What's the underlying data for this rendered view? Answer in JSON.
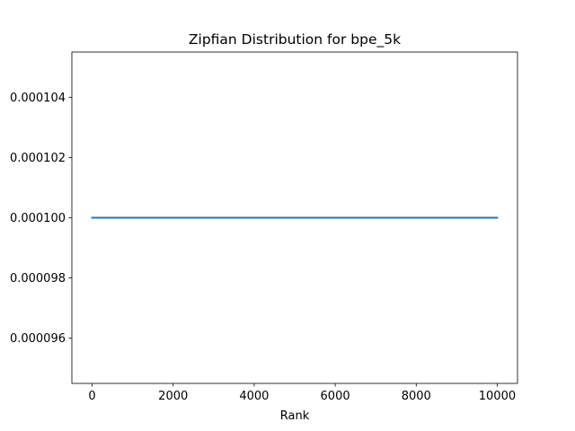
{
  "chart_data": {
    "type": "line",
    "title": "Zipfian Distribution for bpe_5k",
    "xlabel": "Rank",
    "ylabel": "",
    "xlim": [
      -500,
      10500
    ],
    "ylim": [
      9.45e-05,
      0.0001055
    ],
    "xticks": [
      0,
      2000,
      4000,
      6000,
      8000,
      10000
    ],
    "xtick_labels": [
      "0",
      "2000",
      "4000",
      "6000",
      "8000",
      "10000"
    ],
    "yticks": [
      9.6e-05,
      9.8e-05,
      0.0001,
      0.000102,
      0.000104
    ],
    "ytick_labels": [
      "0.000096",
      "0.000098",
      "0.000100",
      "0.000102",
      "0.000104"
    ],
    "grid": false,
    "series": [
      {
        "color": "#1f77b4",
        "x": [
          0,
          10000
        ],
        "y": [
          0.0001,
          0.0001
        ]
      }
    ]
  }
}
